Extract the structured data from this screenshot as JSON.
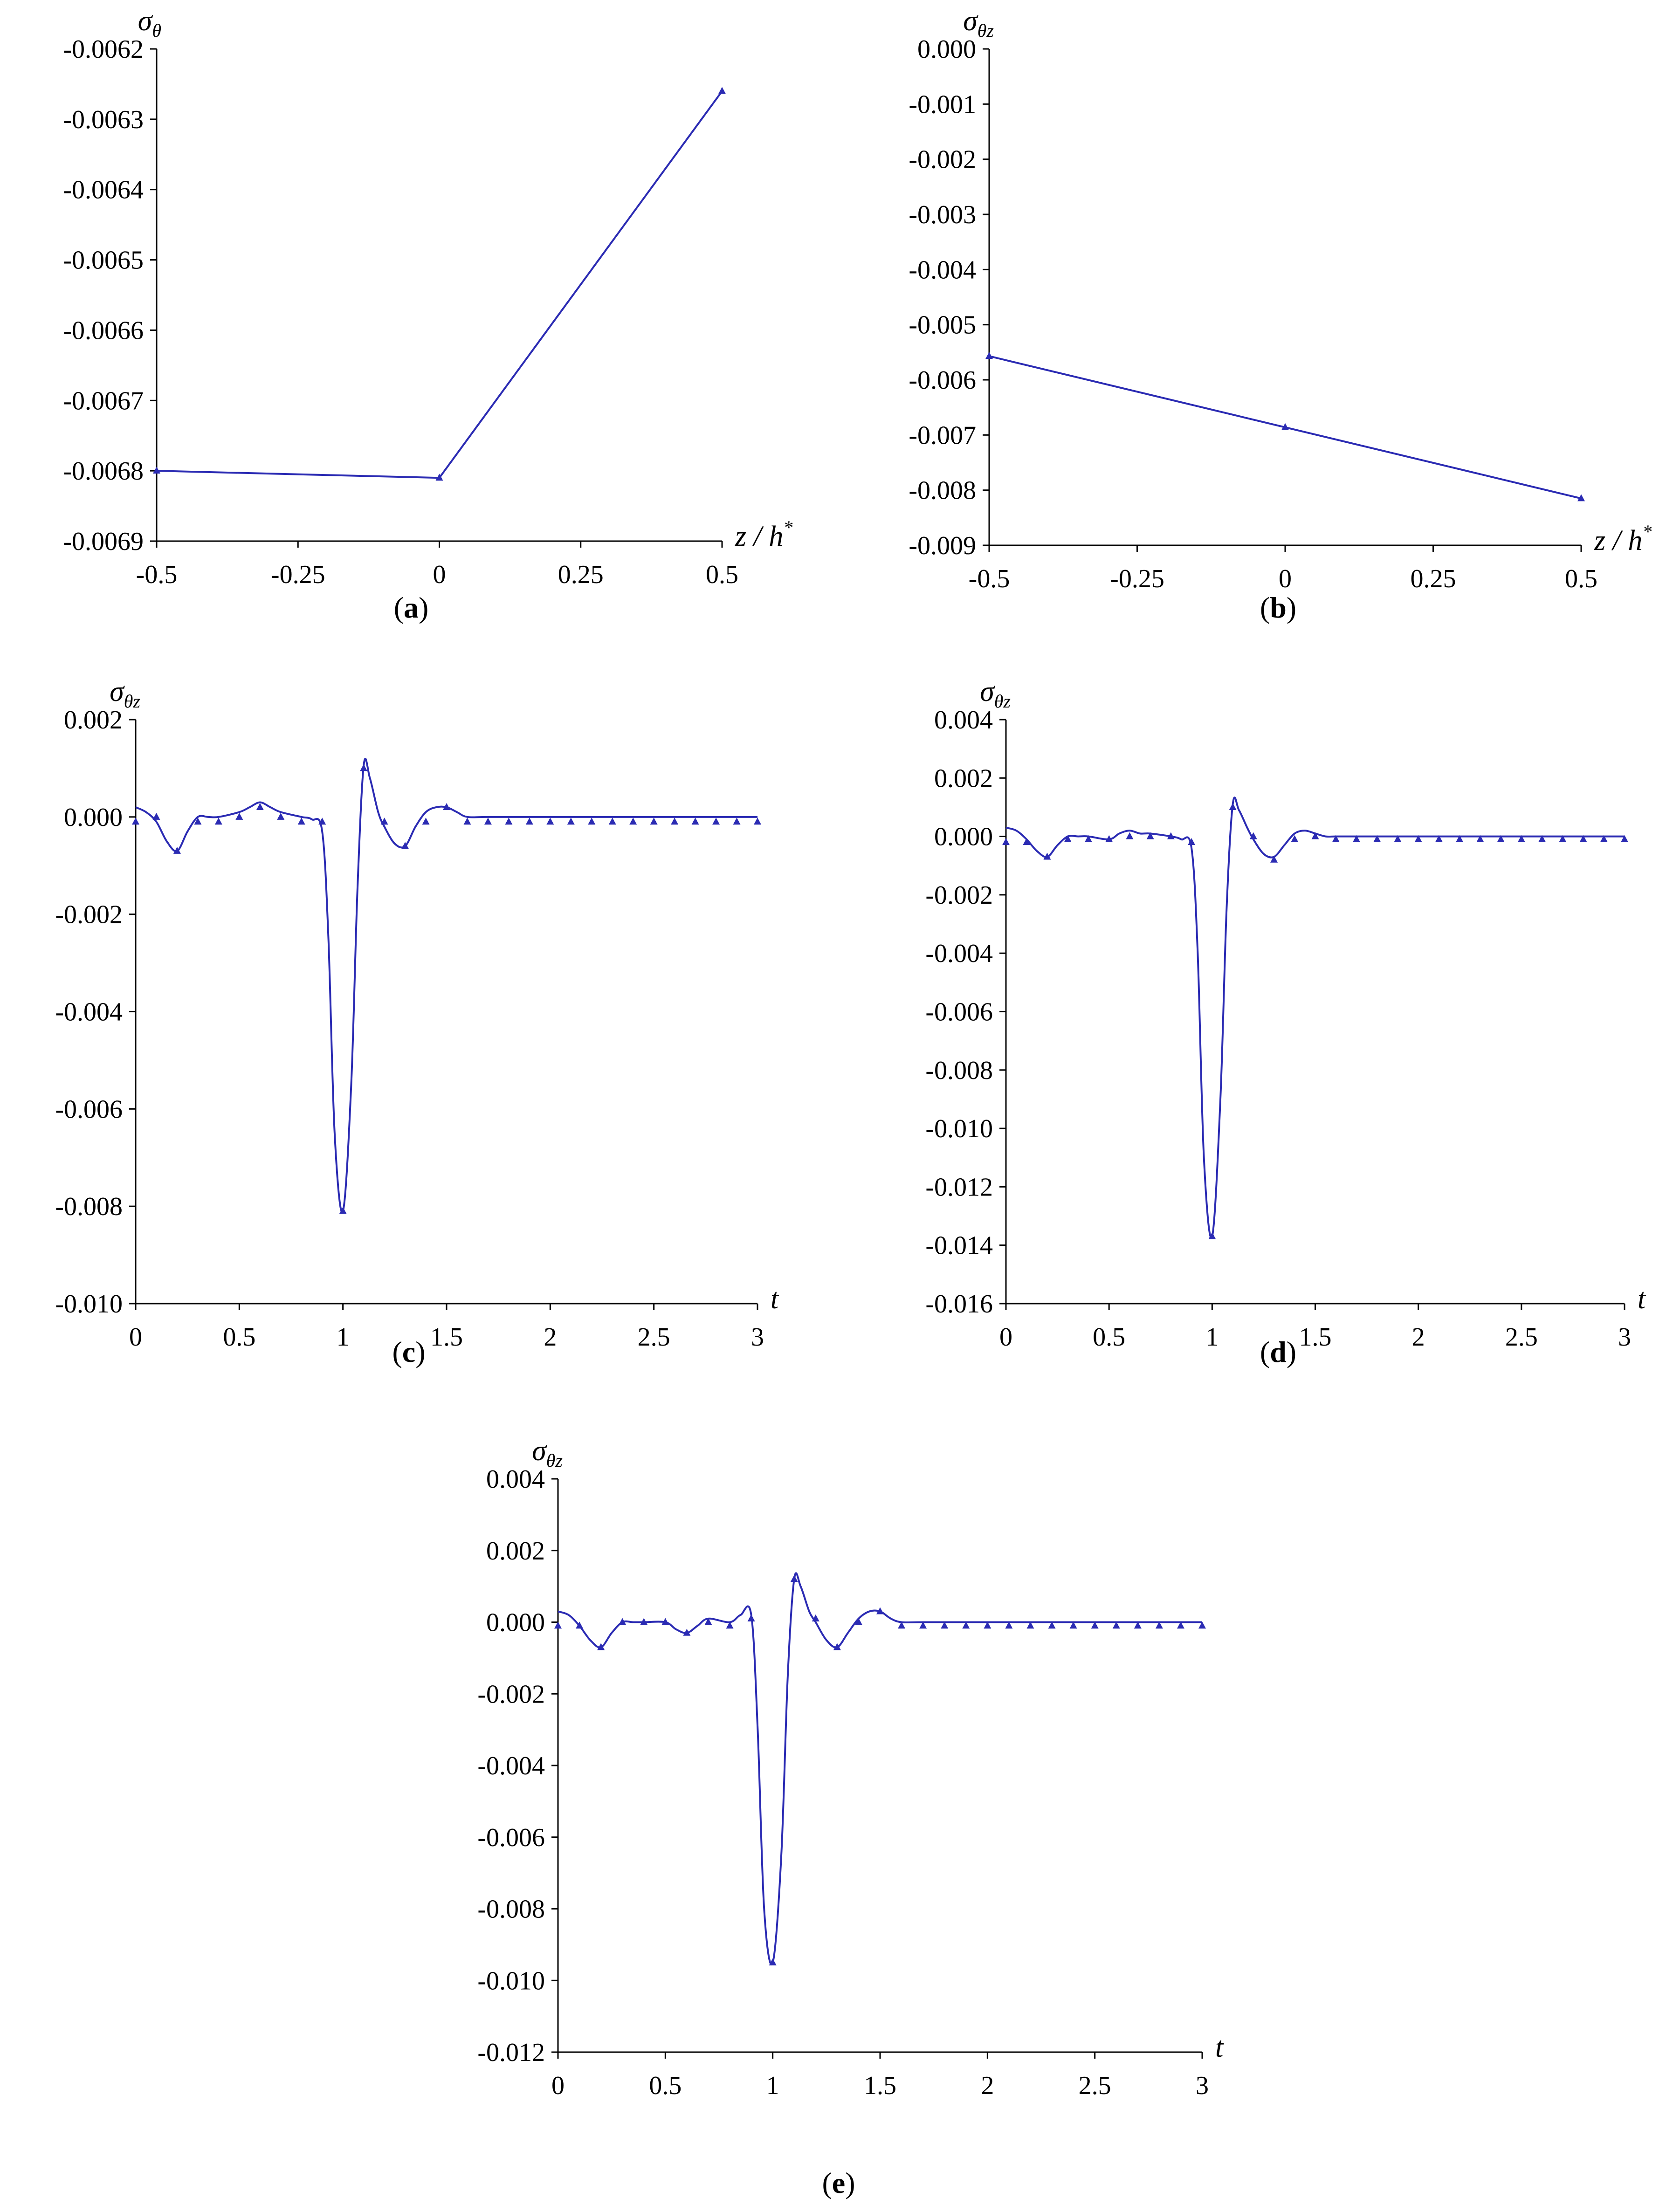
{
  "figure": {
    "colors": {
      "series": "#2b2bb3",
      "axis": "#000000"
    }
  },
  "chart_data": [
    {
      "id": "a",
      "panel_label": "a",
      "type": "line",
      "ylabel": "σ",
      "ylabel_sub": "θ",
      "xlabel": "z / h",
      "xlabel_sup": "*",
      "xlim": [
        -0.5,
        0.5
      ],
      "ylim": [
        -0.0069,
        -0.0062
      ],
      "xticks": [
        -0.5,
        -0.25,
        0,
        0.25,
        0.5
      ],
      "xtick_labels": [
        "-0.5",
        "-0.25",
        "0",
        "0.25",
        "0.5"
      ],
      "yticks": [
        -0.0069,
        -0.0068,
        -0.0067,
        -0.0066,
        -0.0065,
        -0.0064,
        -0.0063,
        -0.0062
      ],
      "ytick_labels": [
        "-0.0069",
        "-0.0068",
        "-0.0067",
        "-0.0066",
        "-0.0065",
        "-0.0064",
        "-0.0063",
        "-0.0062"
      ],
      "series": [
        {
          "line_x": [
            -0.5,
            0,
            0.5
          ],
          "line_y": [
            -0.0068,
            -0.00681,
            -0.00626
          ],
          "points_x": [
            -0.5,
            0,
            0.5
          ],
          "points_y": [
            -0.0068,
            -0.00681,
            -0.00626
          ]
        }
      ]
    },
    {
      "id": "b",
      "panel_label": "b",
      "type": "line",
      "ylabel": "σ",
      "ylabel_sub": "θz",
      "xlabel": "z / h",
      "xlabel_sup": "*",
      "xlim": [
        -0.5,
        0.5
      ],
      "ylim": [
        -0.009,
        0.0
      ],
      "xticks": [
        -0.5,
        -0.25,
        0,
        0.25,
        0.5
      ],
      "xtick_labels": [
        "-0.5",
        "-0.25",
        "0",
        "0.25",
        "0.5"
      ],
      "yticks": [
        -0.009,
        -0.008,
        -0.007,
        -0.006,
        -0.005,
        -0.004,
        -0.003,
        -0.002,
        -0.001,
        0.0
      ],
      "ytick_labels": [
        "-0.009",
        "-0.008",
        "-0.007",
        "-0.006",
        "-0.005",
        "-0.004",
        "-0.003",
        "-0.002",
        "-0.001",
        "0.000"
      ],
      "series": [
        {
          "line_x": [
            -0.5,
            0,
            0.5
          ],
          "line_y": [
            -0.00557,
            -0.00686,
            -0.00815
          ],
          "points_x": [
            -0.5,
            0,
            0.5
          ],
          "points_y": [
            -0.00557,
            -0.00686,
            -0.00815
          ]
        }
      ]
    },
    {
      "id": "c",
      "panel_label": "c",
      "type": "line",
      "ylabel": "σ",
      "ylabel_sub": "θz",
      "xlabel": "t",
      "xlim": [
        0,
        3
      ],
      "ylim": [
        -0.01,
        0.002
      ],
      "xticks": [
        0,
        0.5,
        1,
        1.5,
        2,
        2.5,
        3
      ],
      "xtick_labels": [
        "0",
        "0.5",
        "1",
        "1.5",
        "2",
        "2.5",
        "3"
      ],
      "yticks": [
        -0.01,
        -0.008,
        -0.006,
        -0.004,
        -0.002,
        0.0,
        0.002
      ],
      "ytick_labels": [
        "-0.010",
        "-0.008",
        "-0.006",
        "-0.004",
        "-0.002",
        "0.000",
        "0.002"
      ],
      "series": [
        {
          "line_x": [
            0,
            0.05,
            0.1,
            0.15,
            0.2,
            0.25,
            0.3,
            0.35,
            0.4,
            0.5,
            0.55,
            0.6,
            0.65,
            0.7,
            0.8,
            0.85,
            0.9,
            0.93,
            0.96,
            1.0,
            1.04,
            1.07,
            1.1,
            1.13,
            1.17,
            1.2,
            1.25,
            1.3,
            1.35,
            1.4,
            1.45,
            1.5,
            1.55,
            1.6,
            1.7,
            2.0,
            2.5,
            3.0
          ],
          "line_y": [
            0.0002,
            0.0001,
            -0.0001,
            -0.0005,
            -0.0007,
            -0.0003,
            0.0,
            0.0,
            0.0,
            0.0001,
            0.0002,
            0.0003,
            0.0002,
            0.0001,
            0.0,
            -5e-05,
            -0.0003,
            -0.0025,
            -0.0065,
            -0.0081,
            -0.0055,
            -0.0015,
            0.00105,
            0.0008,
            0.0001,
            -0.0002,
            -0.00055,
            -0.0006,
            -0.0002,
            0.0001,
            0.0002,
            0.0002,
            0.0001,
            0.0,
            0.0,
            0.0,
            0.0,
            0.0
          ],
          "points_x": [
            0,
            0.1,
            0.2,
            0.3,
            0.4,
            0.5,
            0.6,
            0.7,
            0.8,
            0.9,
            1.0,
            1.1,
            1.2,
            1.3,
            1.4,
            1.5,
            1.6,
            1.7,
            1.8,
            1.9,
            2.0,
            2.1,
            2.2,
            2.3,
            2.4,
            2.5,
            2.6,
            2.7,
            2.8,
            2.9,
            3.0
          ],
          "points_y": [
            -0.0001,
            0.0,
            -0.0007,
            -0.0001,
            -0.0001,
            0.0,
            0.0002,
            0.0,
            -0.0001,
            -0.0001,
            -0.0081,
            0.001,
            -0.0001,
            -0.0006,
            -0.0001,
            0.0002,
            -0.0001,
            -0.0001,
            -0.0001,
            -0.0001,
            -0.0001,
            -0.0001,
            -0.0001,
            -0.0001,
            -0.0001,
            -0.0001,
            -0.0001,
            -0.0001,
            -0.0001,
            -0.0001,
            -0.0001
          ]
        }
      ]
    },
    {
      "id": "d",
      "panel_label": "d",
      "type": "line",
      "ylabel": "σ",
      "ylabel_sub": "θz",
      "xlabel": "t",
      "xlim": [
        0,
        3
      ],
      "ylim": [
        -0.016,
        0.004
      ],
      "xticks": [
        0,
        0.5,
        1,
        1.5,
        2,
        2.5,
        3
      ],
      "xtick_labels": [
        "0",
        "0.5",
        "1",
        "1.5",
        "2",
        "2.5",
        "3"
      ],
      "yticks": [
        -0.016,
        -0.014,
        -0.012,
        -0.01,
        -0.008,
        -0.006,
        -0.004,
        -0.002,
        0.0,
        0.002,
        0.004
      ],
      "ytick_labels": [
        "-0.016",
        "-0.014",
        "-0.012",
        "-0.010",
        "-0.008",
        "-0.006",
        "-0.004",
        "-0.002",
        "0.000",
        "0.002",
        "0.004"
      ],
      "series": [
        {
          "line_x": [
            0,
            0.05,
            0.1,
            0.15,
            0.2,
            0.25,
            0.3,
            0.35,
            0.4,
            0.5,
            0.55,
            0.6,
            0.65,
            0.7,
            0.8,
            0.85,
            0.9,
            0.93,
            0.96,
            1.0,
            1.04,
            1.07,
            1.1,
            1.13,
            1.17,
            1.2,
            1.25,
            1.3,
            1.35,
            1.4,
            1.45,
            1.5,
            1.55,
            1.6,
            1.7,
            2.0,
            2.5,
            3.0
          ],
          "line_y": [
            0.0003,
            0.0002,
            -0.0001,
            -0.0005,
            -0.0007,
            -0.0003,
            0.0,
            0.0,
            0.0,
            -0.0001,
            0.0001,
            0.0002,
            0.0001,
            0.0001,
            0.0,
            -0.0001,
            -0.0004,
            -0.004,
            -0.011,
            -0.0137,
            -0.009,
            -0.0025,
            0.0011,
            0.0009,
            0.0003,
            -0.0001,
            -0.0006,
            -0.0007,
            -0.0003,
            0.0001,
            0.0002,
            0.0001,
            0.0,
            0.0,
            0.0,
            0.0,
            0.0,
            0.0
          ],
          "points_x": [
            0,
            0.1,
            0.2,
            0.3,
            0.4,
            0.5,
            0.6,
            0.7,
            0.8,
            0.9,
            1.0,
            1.1,
            1.2,
            1.3,
            1.4,
            1.5,
            1.6,
            1.7,
            1.8,
            1.9,
            2.0,
            2.1,
            2.2,
            2.3,
            2.4,
            2.5,
            2.6,
            2.7,
            2.8,
            2.9,
            3.0
          ],
          "points_y": [
            -0.0002,
            -0.0002,
            -0.0007,
            -0.0001,
            -0.0001,
            -0.0001,
            0.0,
            0.0,
            0.0,
            -0.0002,
            -0.0137,
            0.001,
            0.0,
            -0.0008,
            -0.0001,
            0.0,
            -0.0001,
            -0.0001,
            -0.0001,
            -0.0001,
            -0.0001,
            -0.0001,
            -0.0001,
            -0.0001,
            -0.0001,
            -0.0001,
            -0.0001,
            -0.0001,
            -0.0001,
            -0.0001,
            -0.0001
          ]
        }
      ]
    },
    {
      "id": "e",
      "panel_label": "e",
      "type": "line",
      "ylabel": "σ",
      "ylabel_sub": "θz",
      "xlabel": "t",
      "xlim": [
        0,
        3
      ],
      "ylim": [
        -0.012,
        0.004
      ],
      "xticks": [
        0,
        0.5,
        1,
        1.5,
        2,
        2.5,
        3
      ],
      "xtick_labels": [
        "0",
        "0.5",
        "1",
        "1.5",
        "2",
        "2.5",
        "3"
      ],
      "yticks": [
        -0.012,
        -0.01,
        -0.008,
        -0.006,
        -0.004,
        -0.002,
        0.0,
        0.002,
        0.004
      ],
      "ytick_labels": [
        "-0.012",
        "-0.010",
        "-0.008",
        "-0.006",
        "-0.004",
        "-0.002",
        "0.000",
        "0.002",
        "0.004"
      ],
      "series": [
        {
          "line_x": [
            0,
            0.05,
            0.1,
            0.15,
            0.2,
            0.25,
            0.3,
            0.35,
            0.4,
            0.5,
            0.55,
            0.6,
            0.65,
            0.7,
            0.8,
            0.85,
            0.9,
            0.93,
            0.96,
            1.0,
            1.04,
            1.07,
            1.1,
            1.13,
            1.17,
            1.2,
            1.25,
            1.3,
            1.35,
            1.4,
            1.45,
            1.5,
            1.55,
            1.6,
            1.7,
            2.0,
            2.5,
            3.0
          ],
          "line_y": [
            0.0003,
            0.0002,
            -0.0001,
            -0.0005,
            -0.0007,
            -0.0003,
            0.0,
            0.0,
            0.0,
            0.0,
            -0.0002,
            -0.0003,
            -0.0001,
            0.0001,
            0.0,
            0.0002,
            0.0002,
            -0.003,
            -0.008,
            -0.0095,
            -0.0065,
            -0.0015,
            0.0012,
            0.001,
            0.0003,
            0.0,
            -0.0005,
            -0.0007,
            -0.0003,
            0.0001,
            0.0003,
            0.0003,
            0.0001,
            0.0,
            0.0,
            0.0,
            0.0,
            0.0
          ],
          "points_x": [
            0,
            0.1,
            0.2,
            0.3,
            0.4,
            0.5,
            0.6,
            0.7,
            0.8,
            0.9,
            1.0,
            1.1,
            1.2,
            1.3,
            1.4,
            1.5,
            1.6,
            1.7,
            1.8,
            1.9,
            2.0,
            2.1,
            2.2,
            2.3,
            2.4,
            2.5,
            2.6,
            2.7,
            2.8,
            2.9,
            3.0
          ],
          "points_y": [
            -0.0001,
            -0.0001,
            -0.0007,
            0.0,
            0.0,
            0.0,
            -0.0003,
            0.0,
            -0.0001,
            0.0001,
            -0.0095,
            0.0012,
            0.0001,
            -0.0007,
            0.0,
            0.0003,
            -0.0001,
            -0.0001,
            -0.0001,
            -0.0001,
            -0.0001,
            -0.0001,
            -0.0001,
            -0.0001,
            -0.0001,
            -0.0001,
            -0.0001,
            -0.0001,
            -0.0001,
            -0.0001,
            -0.0001
          ]
        }
      ]
    }
  ]
}
